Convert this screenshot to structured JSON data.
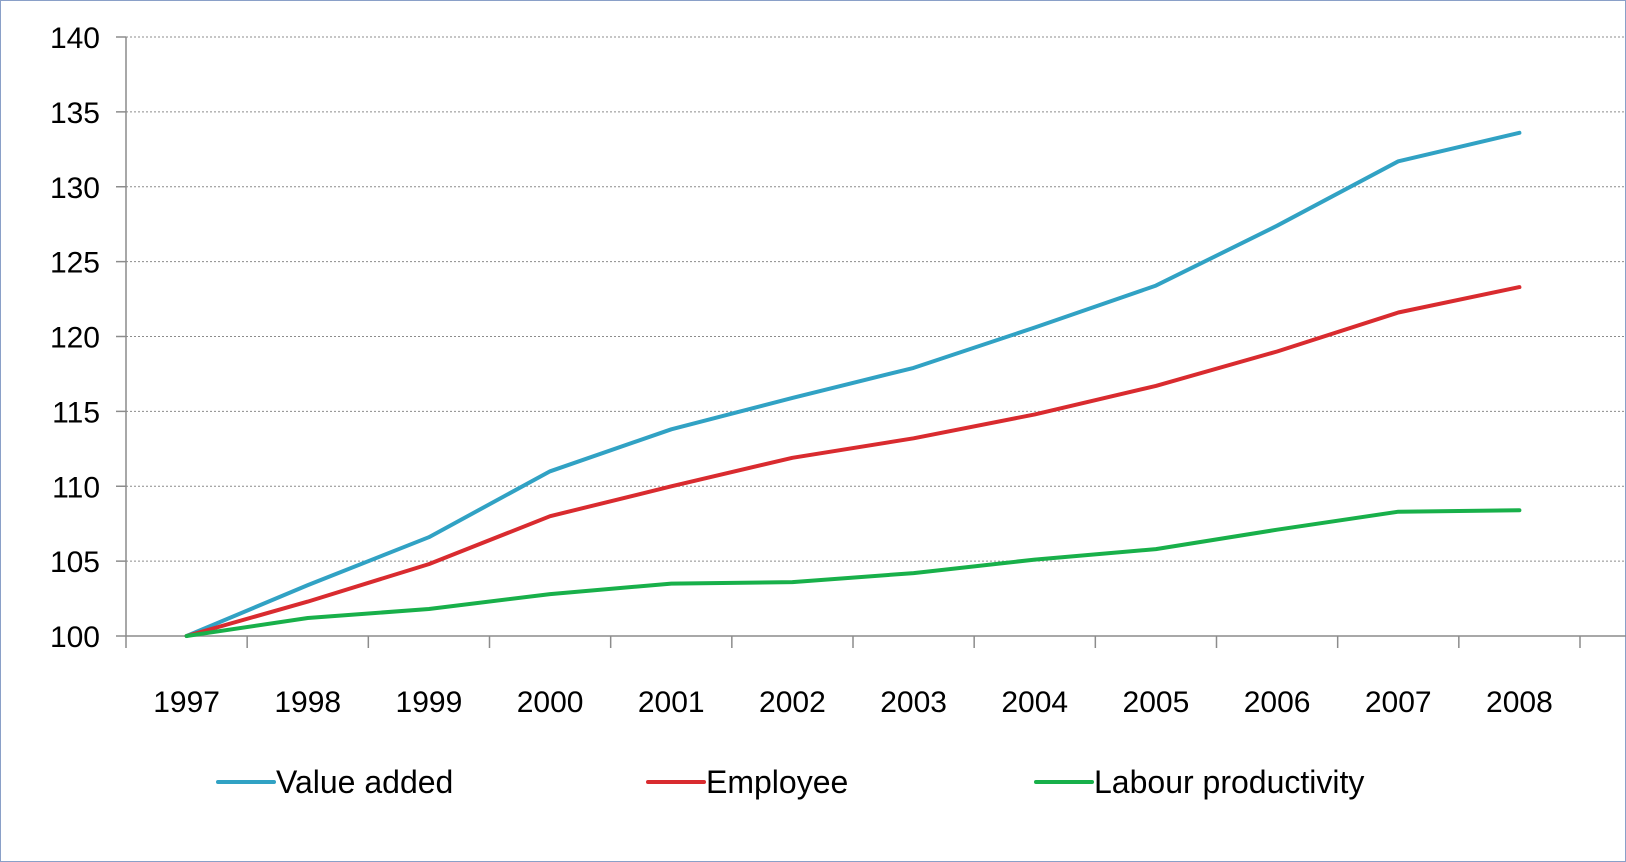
{
  "chart_data": {
    "type": "line",
    "title": "",
    "xlabel": "",
    "ylabel": "",
    "categories": [
      "1997",
      "1998",
      "1999",
      "2000",
      "2001",
      "2002",
      "2003",
      "2004",
      "2005",
      "2006",
      "2007",
      "2008"
    ],
    "ylim": [
      100,
      140
    ],
    "yticks": [
      100,
      105,
      110,
      115,
      120,
      125,
      130,
      135,
      140
    ],
    "grid": "horizontal dotted",
    "legend_position": "bottom",
    "series": [
      {
        "name": "Value added",
        "color": "#31a2c4",
        "values": [
          100,
          103.4,
          106.6,
          111.0,
          113.8,
          115.9,
          117.9,
          120.6,
          123.4,
          127.4,
          131.7,
          133.6
        ]
      },
      {
        "name": "Employee",
        "color": "#d92b2f",
        "values": [
          100,
          102.3,
          104.8,
          108.0,
          110.0,
          111.9,
          113.2,
          114.8,
          116.7,
          119.0,
          121.6,
          123.3
        ]
      },
      {
        "name": "Labour productivity",
        "color": "#18b04a",
        "values": [
          100,
          101.2,
          101.8,
          102.8,
          103.5,
          103.6,
          104.2,
          105.1,
          105.8,
          107.1,
          108.3,
          108.4
        ]
      }
    ]
  }
}
